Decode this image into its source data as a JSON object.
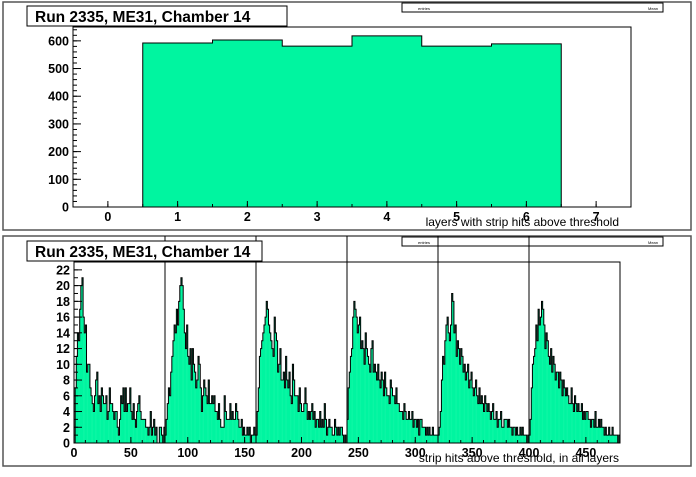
{
  "colors": {
    "fill": "#00f5a0",
    "frame": "#000000",
    "pad_border": "#555555",
    "background": "#ffffff"
  },
  "chart_data": [
    {
      "type": "bar",
      "title": "Run 2335, ME31, Chamber 14",
      "stats_box_labels": [
        "entries",
        "Mean"
      ],
      "xlabel": "layers with strip hits above threshold",
      "ylabel": "",
      "xlim": [
        -0.5,
        7.5
      ],
      "ylim": [
        0,
        650
      ],
      "xticks": [
        0,
        1,
        2,
        3,
        4,
        5,
        6,
        7
      ],
      "yticks": [
        0,
        100,
        200,
        300,
        400,
        500,
        600
      ],
      "categories": [
        1,
        2,
        3,
        4,
        5,
        6
      ],
      "values": [
        592,
        603,
        581,
        618,
        581,
        589
      ],
      "grid": false
    },
    {
      "type": "bar",
      "title": "Run 2335, ME31, Chamber 14",
      "stats_box_labels": [
        "entries",
        "Mean"
      ],
      "xlabel": "strip hits above threshold, in all layers",
      "ylabel": "",
      "xlim": [
        0,
        480
      ],
      "ylim": [
        0,
        23
      ],
      "xticks": [
        0,
        50,
        100,
        150,
        200,
        250,
        300,
        350,
        400,
        450
      ],
      "yticks": [
        0,
        2,
        4,
        6,
        8,
        10,
        12,
        14,
        16,
        18,
        20,
        22
      ],
      "layer_boundaries": [
        80,
        160,
        240,
        320,
        400
      ],
      "layer_hits": [
        [
          0,
          7,
          11,
          14,
          13,
          17,
          20,
          21,
          16,
          14,
          15,
          9,
          10,
          10,
          7,
          6,
          5,
          4,
          6,
          8,
          9,
          5,
          6,
          4,
          7,
          6,
          5,
          5,
          6,
          3,
          4,
          7,
          5,
          5,
          4,
          3,
          4,
          4,
          2,
          1,
          3,
          6,
          5,
          7,
          4,
          7,
          4,
          5,
          5,
          7,
          4,
          3,
          5,
          3,
          2,
          4,
          5,
          6,
          4,
          3,
          3,
          3,
          3,
          2,
          2,
          1,
          2,
          4,
          1,
          2,
          3,
          1,
          2,
          0,
          0,
          2,
          2,
          1,
          0,
          2
        ],
        [
          1,
          3,
          5,
          7,
          6,
          9,
          11,
          13,
          15,
          14,
          17,
          15,
          18,
          20,
          21,
          20,
          17,
          14,
          12,
          15,
          11,
          10,
          12,
          8,
          12,
          10,
          9,
          7,
          8,
          11,
          10,
          7,
          4,
          6,
          8,
          7,
          6,
          5,
          8,
          5,
          5,
          6,
          5,
          6,
          4,
          4,
          3,
          5,
          3,
          2,
          2,
          2,
          6,
          4,
          3,
          3,
          3,
          5,
          3,
          4,
          3,
          3,
          5,
          4,
          3,
          2,
          2,
          3,
          1,
          2,
          1,
          1,
          2,
          1,
          2,
          0,
          1,
          1,
          2,
          1
        ],
        [
          1,
          4,
          7,
          11,
          12,
          13,
          14,
          15,
          16,
          18,
          17,
          15,
          14,
          13,
          12,
          11,
          16,
          14,
          13,
          9,
          10,
          12,
          8,
          8,
          9,
          7,
          11,
          8,
          7,
          9,
          6,
          5,
          10,
          8,
          6,
          6,
          6,
          4,
          7,
          5,
          4,
          4,
          5,
          7,
          5,
          3,
          4,
          3,
          4,
          5,
          3,
          4,
          2,
          3,
          3,
          2,
          4,
          2,
          3,
          2,
          5,
          3,
          1,
          2,
          3,
          2,
          2,
          1,
          1,
          3,
          2,
          1,
          2,
          1,
          2,
          2,
          1,
          0,
          1,
          0
        ],
        [
          3,
          7,
          9,
          11,
          12,
          16,
          18,
          17,
          16,
          14,
          15,
          16,
          12,
          13,
          12,
          10,
          14,
          12,
          11,
          10,
          9,
          12,
          13,
          9,
          10,
          9,
          8,
          10,
          8,
          7,
          9,
          8,
          6,
          9,
          7,
          6,
          6,
          5,
          8,
          7,
          6,
          6,
          5,
          7,
          5,
          5,
          4,
          4,
          4,
          3,
          5,
          4,
          3,
          3,
          4,
          3,
          3,
          4,
          2,
          3,
          3,
          2,
          3,
          1,
          3,
          3,
          2,
          2,
          2,
          1,
          2,
          1,
          2,
          1,
          1,
          2,
          1,
          1,
          1,
          1
        ],
        [
          1,
          2,
          4,
          8,
          11,
          10,
          13,
          15,
          16,
          14,
          13,
          15,
          19,
          18,
          14,
          15,
          11,
          13,
          12,
          10,
          12,
          11,
          9,
          10,
          8,
          9,
          10,
          7,
          8,
          9,
          7,
          6,
          7,
          8,
          6,
          5,
          7,
          5,
          6,
          5,
          4,
          6,
          5,
          4,
          5,
          4,
          3,
          4,
          5,
          3,
          3,
          4,
          2,
          3,
          3,
          4,
          2,
          2,
          3,
          3,
          3,
          2,
          3,
          2,
          2,
          1,
          2,
          2,
          1,
          2,
          1,
          1,
          2,
          1,
          2,
          1,
          1,
          1,
          0,
          1
        ],
        [
          1,
          3,
          7,
          10,
          11,
          12,
          15,
          13,
          17,
          15,
          16,
          18,
          17,
          15,
          12,
          14,
          13,
          11,
          10,
          12,
          9,
          11,
          10,
          8,
          9,
          9,
          7,
          9,
          8,
          6,
          8,
          7,
          6,
          7,
          6,
          5,
          5,
          7,
          5,
          4,
          6,
          5,
          4,
          5,
          4,
          4,
          5,
          3,
          4,
          3,
          4,
          4,
          3,
          3,
          2,
          3,
          3,
          2,
          4,
          2,
          2,
          3,
          2,
          3,
          2,
          2,
          1,
          2,
          1,
          1,
          2,
          1,
          1,
          2,
          1,
          1,
          1,
          1,
          0,
          1
        ]
      ],
      "grid": false
    }
  ]
}
